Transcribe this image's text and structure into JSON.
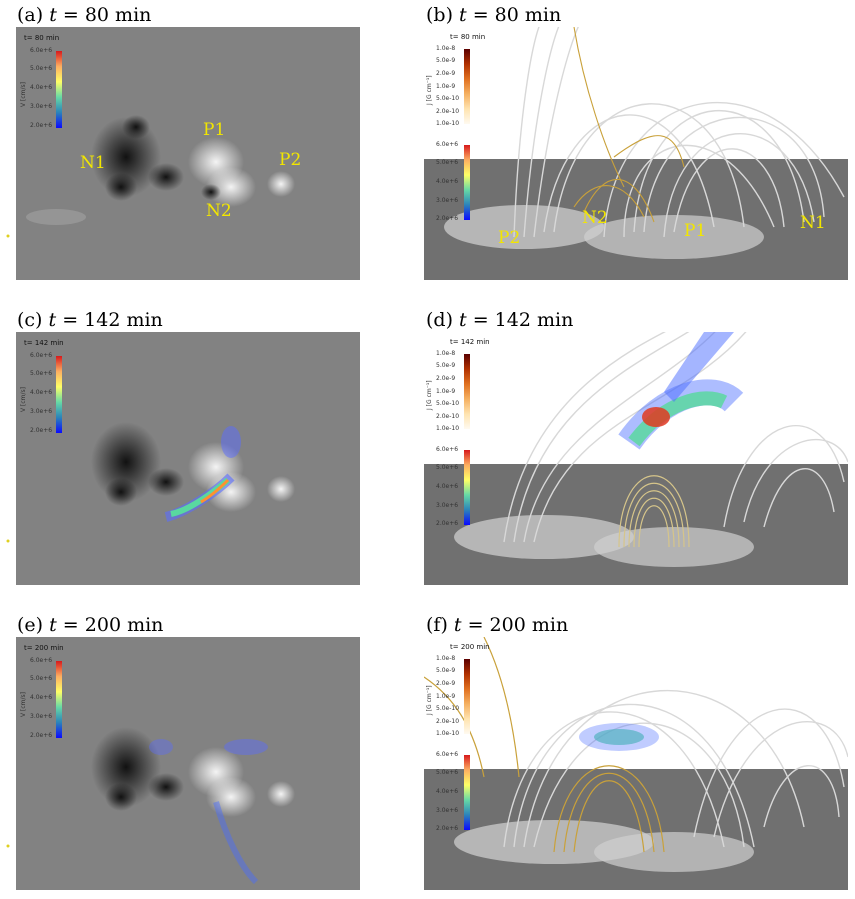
{
  "captions": {
    "a": {
      "prefix": "(a)",
      "var": "t",
      "rest": " = 80 min"
    },
    "b": {
      "prefix": "(b)",
      "var": "t",
      "rest": " = 80 min"
    },
    "c": {
      "prefix": "(c)",
      "var": "t",
      "rest": " = 142 min"
    },
    "d": {
      "prefix": "(d)",
      "var": "t",
      "rest": " = 142 min"
    },
    "e": {
      "prefix": "(e)",
      "var": "t",
      "rest": " = 200 min"
    },
    "f": {
      "prefix": "(f)",
      "var": "t",
      "rest": " = 200 min"
    }
  },
  "time_labels": {
    "a": "t=  80 min",
    "b": "t=  80 min",
    "c": "t=  142 min",
    "d": "t=  142 min",
    "e": "t=  200 min",
    "f": "t=  200 min"
  },
  "v_colorbar": {
    "title": "V [cm/s]",
    "ticks": [
      "6.0e+6",
      "5.0e+6",
      "4.0e+6",
      "3.0e+6",
      "2.0e+6"
    ],
    "colors": [
      "#d7191c",
      "#fdae61",
      "#ffff66",
      "#66d9a6",
      "#2b83ba",
      "#0a0aff"
    ]
  },
  "j_colorbar": {
    "title": "J [G cm⁻¹]",
    "ticks": [
      "1.0e-8",
      "5.0e-9",
      "2.0e-9",
      "1.0e-9",
      "5.0e-10",
      "2.0e-10",
      "1.0e-10"
    ],
    "colors": [
      "#5a0000",
      "#b03000",
      "#e07020",
      "#f5b060",
      "#ffe4b0",
      "#fffaf0"
    ]
  },
  "polarity_labels": {
    "a": [
      "N1",
      "P1",
      "P2",
      "N2"
    ],
    "b": [
      "P2",
      "N2",
      "P1",
      "N1"
    ]
  }
}
